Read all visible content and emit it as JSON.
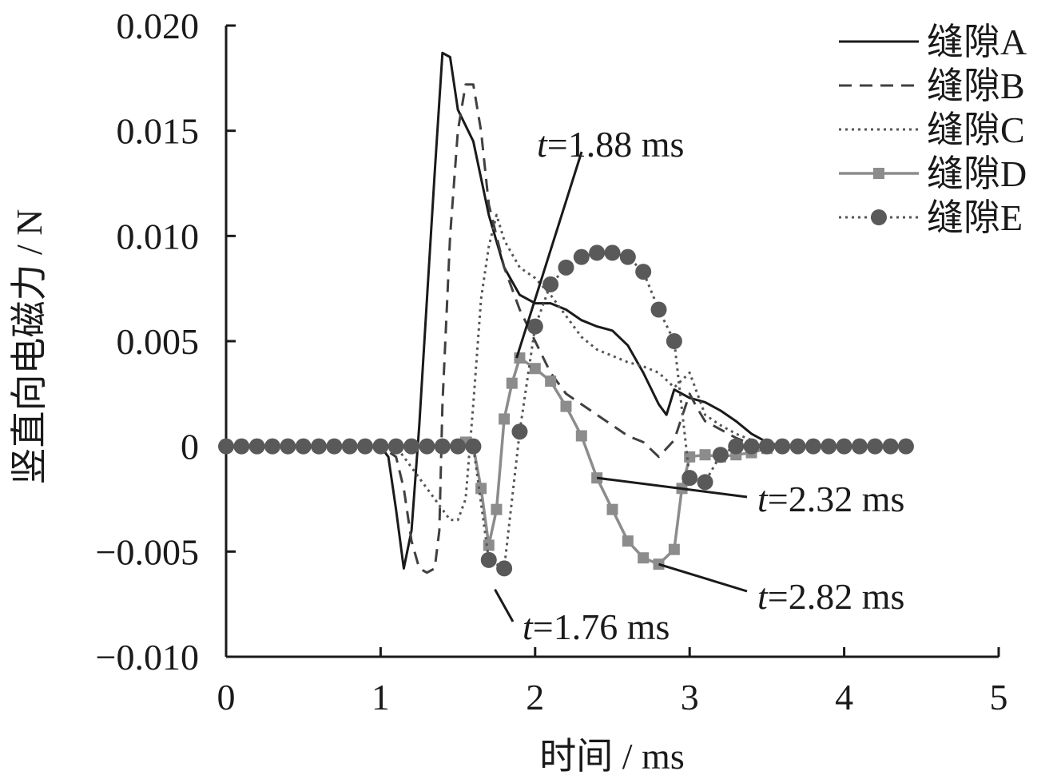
{
  "chart_data": {
    "type": "line",
    "xlabel": "时间 / ms",
    "ylabel": "竖直向电磁力 / N",
    "xlim": [
      0,
      5
    ],
    "ylim": [
      -0.01,
      0.02
    ],
    "x_ticks": [
      "0",
      "1",
      "2",
      "3",
      "4",
      "5"
    ],
    "y_ticks": [
      "−0.010",
      "−0.005",
      "0",
      "0.005",
      "0.010",
      "0.015",
      "0.020"
    ],
    "x_tick_values": [
      0,
      1,
      2,
      3,
      4,
      5
    ],
    "y_tick_values": [
      -0.01,
      -0.005,
      0,
      0.005,
      0.01,
      0.015,
      0.02
    ],
    "grid": false,
    "legend_position": "top-right",
    "series": [
      {
        "name": "缝隙A",
        "style": "solid",
        "color": "#1a1a1a",
        "marker": "none",
        "points": [
          [
            0,
            0
          ],
          [
            1.0,
            0
          ],
          [
            1.05,
            -0.0005
          ],
          [
            1.1,
            -0.003
          ],
          [
            1.15,
            -0.0058
          ],
          [
            1.2,
            -0.004
          ],
          [
            1.25,
            0.001
          ],
          [
            1.3,
            0.007
          ],
          [
            1.35,
            0.013
          ],
          [
            1.4,
            0.0187
          ],
          [
            1.45,
            0.0185
          ],
          [
            1.5,
            0.016
          ],
          [
            1.6,
            0.0145
          ],
          [
            1.7,
            0.011
          ],
          [
            1.8,
            0.0085
          ],
          [
            1.9,
            0.0072
          ],
          [
            2.0,
            0.0068
          ],
          [
            2.1,
            0.0068
          ],
          [
            2.2,
            0.0065
          ],
          [
            2.3,
            0.006
          ],
          [
            2.4,
            0.0057
          ],
          [
            2.5,
            0.0055
          ],
          [
            2.6,
            0.0048
          ],
          [
            2.7,
            0.0035
          ],
          [
            2.8,
            0.002
          ],
          [
            2.85,
            0.0015
          ],
          [
            2.9,
            0.0027
          ],
          [
            3.0,
            0.0023
          ],
          [
            3.1,
            0.0021
          ],
          [
            3.2,
            0.0017
          ],
          [
            3.3,
            0.0012
          ],
          [
            3.4,
            0.0006
          ],
          [
            3.5,
            0.0002
          ],
          [
            3.6,
            0
          ],
          [
            3.7,
            0
          ]
        ]
      },
      {
        "name": "缝隙B",
        "style": "dashed",
        "color": "#404040",
        "marker": "none",
        "points": [
          [
            0,
            0
          ],
          [
            1.0,
            0
          ],
          [
            1.1,
            -0.0005
          ],
          [
            1.15,
            -0.002
          ],
          [
            1.2,
            -0.0045
          ],
          [
            1.25,
            -0.0058
          ],
          [
            1.3,
            -0.006
          ],
          [
            1.35,
            -0.0058
          ],
          [
            1.38,
            -0.004
          ],
          [
            1.4,
            0.002
          ],
          [
            1.45,
            0.01
          ],
          [
            1.5,
            0.015
          ],
          [
            1.55,
            0.0172
          ],
          [
            1.6,
            0.0172
          ],
          [
            1.65,
            0.015
          ],
          [
            1.7,
            0.0115
          ],
          [
            1.8,
            0.0085
          ],
          [
            1.9,
            0.0065
          ],
          [
            2.0,
            0.005
          ],
          [
            2.1,
            0.0035
          ],
          [
            2.2,
            0.0025
          ],
          [
            2.4,
            0.0015
          ],
          [
            2.6,
            0.0005
          ],
          [
            2.7,
            0.0002
          ],
          [
            2.8,
            -0.0005
          ],
          [
            2.9,
            0.0003
          ],
          [
            3.0,
            0.0025
          ],
          [
            3.05,
            0.0018
          ],
          [
            3.1,
            0.0012
          ],
          [
            3.2,
            0.0008
          ],
          [
            3.3,
            0.0004
          ],
          [
            3.4,
            0.0001
          ],
          [
            3.5,
            0
          ],
          [
            3.6,
            0
          ]
        ]
      },
      {
        "name": "缝隙C",
        "style": "dotted",
        "color": "#555555",
        "marker": "none",
        "points": [
          [
            0,
            0
          ],
          [
            1.1,
            0
          ],
          [
            1.2,
            -0.001
          ],
          [
            1.3,
            -0.002
          ],
          [
            1.4,
            -0.003
          ],
          [
            1.45,
            -0.0035
          ],
          [
            1.5,
            -0.0035
          ],
          [
            1.55,
            -0.0025
          ],
          [
            1.6,
            0.002
          ],
          [
            1.65,
            0.007
          ],
          [
            1.7,
            0.0095
          ],
          [
            1.75,
            0.011
          ],
          [
            1.8,
            0.0098
          ],
          [
            1.9,
            0.0085
          ],
          [
            2.0,
            0.008
          ],
          [
            2.1,
            0.0072
          ],
          [
            2.2,
            0.0062
          ],
          [
            2.3,
            0.0052
          ],
          [
            2.4,
            0.0046
          ],
          [
            2.5,
            0.0043
          ],
          [
            2.6,
            0.004
          ],
          [
            2.7,
            0.0038
          ],
          [
            2.8,
            0.0035
          ],
          [
            2.9,
            0.0028
          ],
          [
            3.0,
            0.0035
          ],
          [
            3.05,
            0.0025
          ],
          [
            3.1,
            0.0015
          ],
          [
            3.2,
            0.001
          ],
          [
            3.3,
            0.0006
          ],
          [
            3.4,
            0.0003
          ],
          [
            3.5,
            0.0001
          ],
          [
            3.6,
            0
          ]
        ]
      },
      {
        "name": "缝隙D",
        "style": "solid",
        "color": "#8c8c8c",
        "marker": "square",
        "points": [
          [
            0,
            0
          ],
          [
            1.5,
            0
          ],
          [
            1.55,
            0.0002
          ],
          [
            1.6,
            0
          ],
          [
            1.65,
            -0.002
          ],
          [
            1.7,
            -0.0047
          ],
          [
            1.75,
            -0.003
          ],
          [
            1.8,
            0.0013
          ],
          [
            1.85,
            0.003
          ],
          [
            1.9,
            0.0042
          ],
          [
            2.0,
            0.0037
          ],
          [
            2.1,
            0.0031
          ],
          [
            2.2,
            0.0019
          ],
          [
            2.3,
            0.0005
          ],
          [
            2.4,
            -0.0015
          ],
          [
            2.5,
            -0.003
          ],
          [
            2.6,
            -0.0045
          ],
          [
            2.7,
            -0.0053
          ],
          [
            2.8,
            -0.0056
          ],
          [
            2.9,
            -0.0049
          ],
          [
            2.95,
            -0.002
          ],
          [
            3.0,
            -0.0005
          ],
          [
            3.1,
            -0.0004
          ],
          [
            3.2,
            -0.0005
          ],
          [
            3.3,
            -0.0004
          ],
          [
            3.4,
            -0.0003
          ],
          [
            3.5,
            -0.0001
          ],
          [
            3.6,
            0
          ]
        ]
      },
      {
        "name": "缝隙E",
        "style": "dotted",
        "color": "#555555",
        "marker": "circle",
        "points": [
          [
            0,
            0
          ],
          [
            0.1,
            0
          ],
          [
            0.2,
            0
          ],
          [
            0.3,
            0
          ],
          [
            0.4,
            0
          ],
          [
            0.5,
            0
          ],
          [
            0.6,
            0
          ],
          [
            0.7,
            0
          ],
          [
            0.8,
            0
          ],
          [
            0.9,
            0
          ],
          [
            1.0,
            0
          ],
          [
            1.1,
            0
          ],
          [
            1.2,
            0
          ],
          [
            1.3,
            0
          ],
          [
            1.4,
            0
          ],
          [
            1.5,
            0
          ],
          [
            1.6,
            0
          ],
          [
            1.7,
            -0.0054
          ],
          [
            1.8,
            -0.0058
          ],
          [
            1.9,
            0.0007
          ],
          [
            2.0,
            0.0057
          ],
          [
            2.1,
            0.0077
          ],
          [
            2.2,
            0.0085
          ],
          [
            2.3,
            0.009
          ],
          [
            2.4,
            0.0092
          ],
          [
            2.5,
            0.0092
          ],
          [
            2.6,
            0.009
          ],
          [
            2.7,
            0.0083
          ],
          [
            2.8,
            0.0065
          ],
          [
            2.9,
            0.005
          ],
          [
            3.0,
            -0.0015
          ],
          [
            3.1,
            -0.0017
          ],
          [
            3.2,
            -0.0004
          ],
          [
            3.3,
            0
          ],
          [
            3.4,
            0
          ],
          [
            3.5,
            0
          ],
          [
            3.6,
            0
          ],
          [
            3.7,
            0
          ],
          [
            3.8,
            0
          ],
          [
            3.9,
            0
          ],
          [
            4.0,
            0
          ],
          [
            4.1,
            0
          ],
          [
            4.2,
            0
          ],
          [
            4.3,
            0
          ],
          [
            4.4,
            0
          ]
        ]
      }
    ],
    "annotations": [
      {
        "italic": "t",
        "text": "=1.88 ms",
        "target": [
          1.88,
          0.0042
        ],
        "label_side": "upper"
      },
      {
        "italic": "t",
        "text": "=2.32 ms",
        "target": [
          2.4,
          -0.0015
        ],
        "label_side": "right"
      },
      {
        "italic": "t",
        "text": "=2.82 ms",
        "target": [
          2.8,
          -0.0056
        ],
        "label_side": "right"
      },
      {
        "italic": "t",
        "text": "=1.76 ms",
        "target": [
          1.74,
          -0.0068
        ],
        "label_side": "lower"
      }
    ]
  }
}
